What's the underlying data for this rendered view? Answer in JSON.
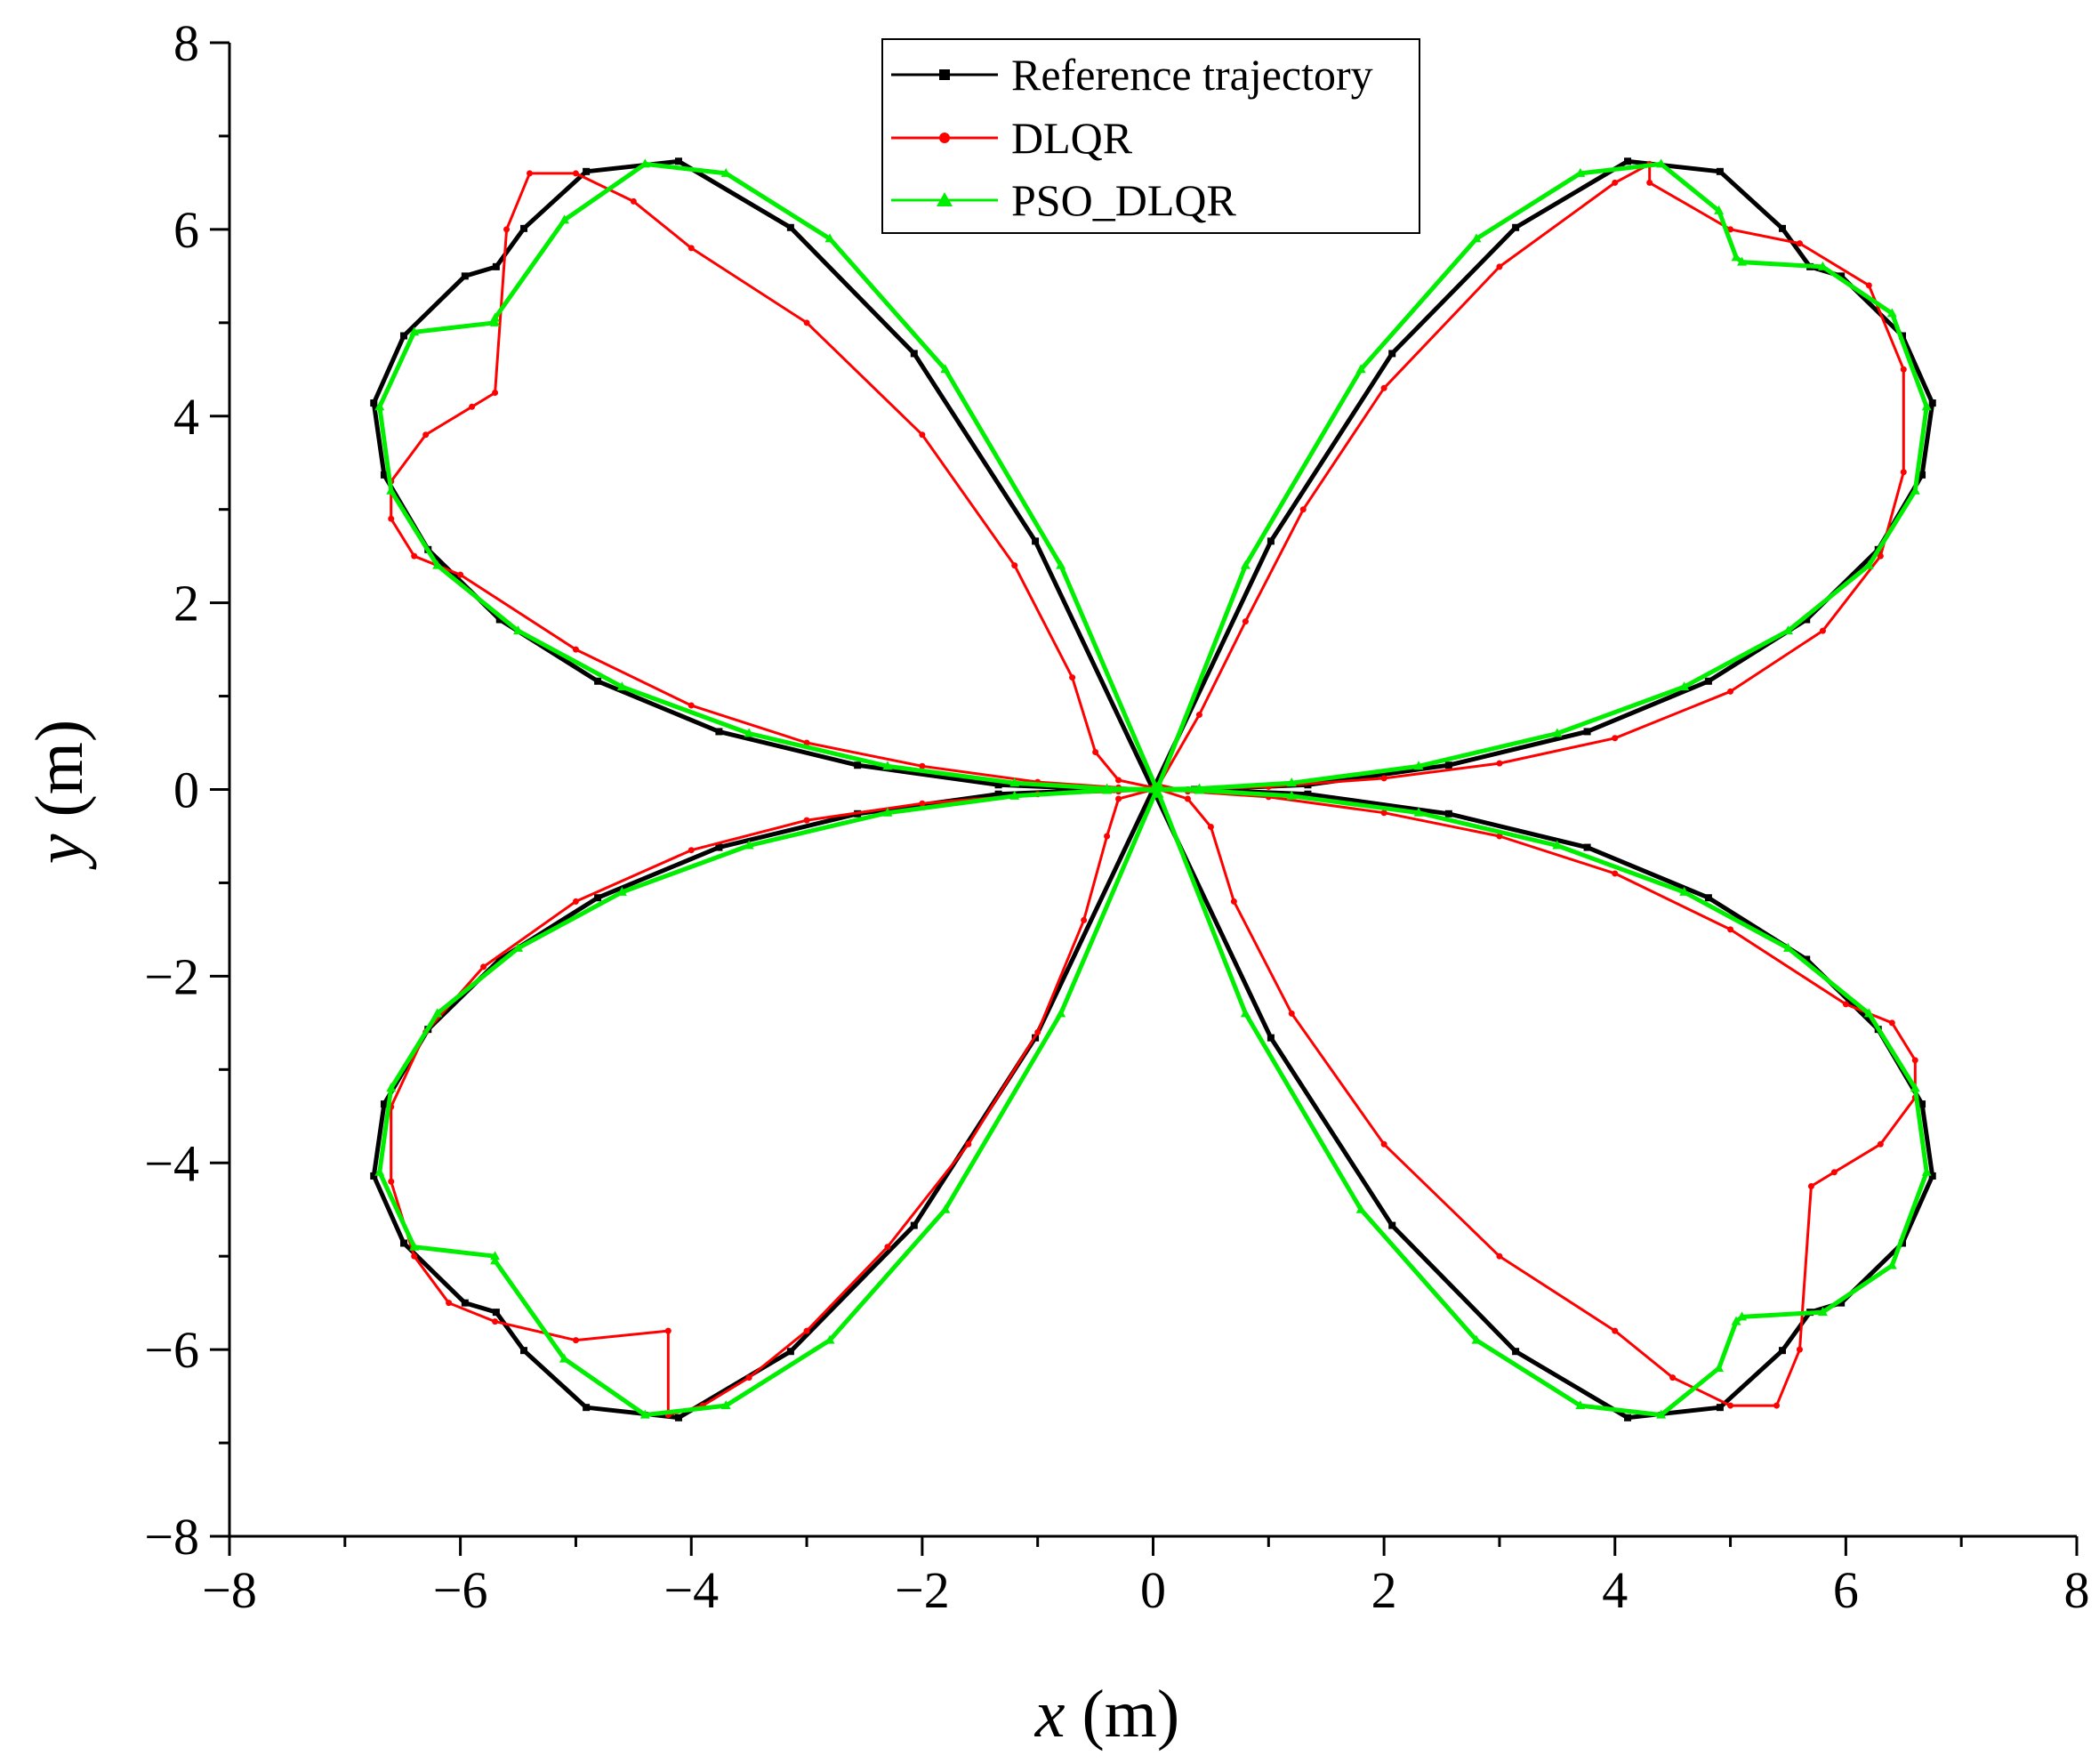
{
  "chart_data": {
    "type": "line",
    "title": "",
    "xlabel": {
      "var": "x",
      "unit": " (m)"
    },
    "ylabel": {
      "var": "y",
      "unit": " (m)"
    },
    "xlim": [
      -8,
      8
    ],
    "ylim": [
      -8,
      8
    ],
    "xticks": [
      -8,
      -6,
      -4,
      -2,
      0,
      2,
      4,
      6,
      8
    ],
    "yticks": [
      -8,
      -6,
      -4,
      -2,
      0,
      2,
      4,
      6,
      8
    ],
    "xtick_labels": [
      "−8",
      "−6",
      "−4",
      "−2",
      "0",
      "2",
      "4",
      "6",
      "8"
    ],
    "ytick_labels": [
      "−8",
      "−6",
      "−4",
      "−2",
      "0",
      "2",
      "4",
      "6",
      "8"
    ],
    "grid": false,
    "legend_position": "top-center",
    "series": [
      {
        "name": "Reference trajectory",
        "color": "#000000",
        "marker": "square",
        "x": [
          0.0,
          1.02,
          2.07,
          3.14,
          4.11,
          4.91,
          5.45,
          5.69,
          5.96,
          6.49,
          6.75,
          6.66,
          6.28,
          5.66,
          4.81,
          3.76,
          2.56,
          1.34,
          0.36,
          0.0,
          -0.36,
          -1.34,
          -2.56,
          -3.76,
          -4.81,
          -5.66,
          -6.28,
          -6.66,
          -6.75,
          -6.49,
          -5.96,
          -5.69,
          -5.45,
          -4.91,
          -4.11,
          -3.14,
          -2.07,
          -1.02,
          0.0,
          1.02,
          2.07,
          3.14,
          4.11,
          4.91,
          5.45,
          5.69,
          5.96,
          6.49,
          6.75,
          6.66,
          6.28,
          5.66,
          4.81,
          3.76,
          2.56,
          1.34,
          0.36,
          0.0,
          -0.36,
          -1.34,
          -2.56,
          -3.76,
          -4.81,
          -5.66,
          -6.28,
          -6.66,
          -6.75,
          -6.49,
          -5.96,
          -5.69,
          -5.45,
          -4.91,
          -4.11,
          -3.14,
          -2.07,
          -1.02,
          0.0
        ],
        "y": [
          0.0,
          2.66,
          4.67,
          6.02,
          6.73,
          6.62,
          6.01,
          5.6,
          5.5,
          4.86,
          4.14,
          3.37,
          2.57,
          1.82,
          1.16,
          0.62,
          0.26,
          0.05,
          0.0,
          0.0,
          0.0,
          0.05,
          0.26,
          0.62,
          1.16,
          1.82,
          2.57,
          3.37,
          4.14,
          4.86,
          5.5,
          5.6,
          6.01,
          6.62,
          6.73,
          6.02,
          4.67,
          2.66,
          0.0,
          -2.66,
          -4.67,
          -6.02,
          -6.73,
          -6.62,
          -6.01,
          -5.6,
          -5.5,
          -4.86,
          -4.14,
          -3.37,
          -2.57,
          -1.82,
          -1.16,
          -0.62,
          -0.26,
          -0.05,
          0.0,
          0.0,
          0.0,
          -0.05,
          -0.26,
          -0.62,
          -1.16,
          -1.82,
          -2.57,
          -3.37,
          -4.14,
          -4.86,
          -5.5,
          -5.6,
          -6.01,
          -6.62,
          -6.73,
          -6.02,
          -4.67,
          -2.66,
          0.0
        ]
      },
      {
        "name": "DLQR",
        "color": "#ff0000",
        "marker": "circle",
        "x": [
          0.05,
          0.4,
          0.8,
          1.3,
          2.0,
          3.0,
          4.0,
          4.3,
          4.3,
          5.0,
          5.6,
          6.2,
          6.5,
          6.5,
          6.3,
          5.8,
          5.0,
          4.0,
          3.0,
          2.0,
          1.0,
          0.3,
          0.0,
          -0.3,
          -0.5,
          -0.7,
          -1.2,
          -2.0,
          -3.0,
          -4.0,
          -4.5,
          -5.0,
          -5.4,
          -5.6,
          -5.7,
          -5.9,
          -6.3,
          -6.6,
          -6.6,
          -6.4,
          -6.0,
          -5.0,
          -4.0,
          -3.0,
          -2.0,
          -1.0,
          -0.3,
          0.0,
          -0.3,
          -0.4,
          -0.6,
          -1.0,
          -1.6,
          -2.3,
          -3.0,
          -3.5,
          -3.9,
          -4.2,
          -4.2,
          -5.0,
          -5.7,
          -6.1,
          -6.4,
          -6.6,
          -6.6,
          -6.3,
          -5.8,
          -5.0,
          -4.0,
          -3.0,
          -2.0,
          -1.0,
          -0.3,
          0.05,
          0.3,
          0.5,
          0.7,
          1.2,
          2.0,
          3.0,
          4.0,
          4.5,
          5.0,
          5.4,
          5.6,
          5.7,
          5.9,
          6.3,
          6.6,
          6.6,
          6.4,
          6.0,
          5.0,
          4.0,
          3.0,
          2.0,
          1.0,
          0.3,
          0.05
        ],
        "y": [
          0.05,
          0.8,
          1.8,
          3.0,
          4.3,
          5.6,
          6.5,
          6.7,
          6.5,
          6.0,
          5.85,
          5.4,
          4.5,
          3.4,
          2.5,
          1.7,
          1.05,
          0.55,
          0.28,
          0.12,
          0.03,
          0.0,
          0.02,
          0.1,
          0.4,
          1.2,
          2.4,
          3.8,
          5.0,
          5.8,
          6.3,
          6.6,
          6.6,
          6.0,
          4.25,
          4.1,
          3.8,
          3.3,
          2.9,
          2.5,
          2.3,
          1.5,
          0.9,
          0.5,
          0.25,
          0.08,
          0.02,
          0.0,
          -0.1,
          -0.5,
          -1.4,
          -2.6,
          -3.8,
          -4.9,
          -5.8,
          -6.3,
          -6.6,
          -6.7,
          -5.8,
          -5.9,
          -5.7,
          -5.5,
          -5.0,
          -4.2,
          -3.4,
          -2.6,
          -1.9,
          -1.2,
          -0.65,
          -0.33,
          -0.15,
          -0.05,
          -0.02,
          0.0,
          -0.1,
          -0.4,
          -1.2,
          -2.4,
          -3.8,
          -5.0,
          -5.8,
          -6.3,
          -6.6,
          -6.6,
          -6.0,
          -4.25,
          -4.1,
          -3.8,
          -3.3,
          -2.9,
          -2.5,
          -2.3,
          -1.5,
          -0.9,
          -0.5,
          -0.25,
          -0.08,
          -0.02,
          0.05
        ]
      },
      {
        "name": "PSO_DLQR",
        "color": "#00ee00",
        "marker": "triangle",
        "x": [
          0.05,
          0.8,
          1.8,
          2.8,
          3.7,
          4.4,
          4.9,
          5.05,
          5.1,
          5.8,
          6.4,
          6.7,
          6.6,
          6.2,
          5.5,
          4.6,
          3.5,
          2.3,
          1.2,
          0.4,
          0.0,
          -0.4,
          -1.2,
          -2.3,
          -3.5,
          -4.6,
          -5.5,
          -6.2,
          -6.6,
          -6.7,
          -6.4,
          -5.7,
          -5.7,
          -5.1,
          -4.4,
          -3.7,
          -2.8,
          -1.8,
          -0.8,
          0.05,
          0.8,
          1.8,
          2.8,
          3.7,
          4.4,
          4.9,
          5.05,
          5.1,
          5.8,
          6.4,
          6.7,
          6.6,
          6.2,
          5.5,
          4.6,
          3.5,
          2.3,
          1.2,
          0.4,
          0.0,
          -0.4,
          -1.2,
          -2.3,
          -3.5,
          -4.6,
          -5.5,
          -6.2,
          -6.6,
          -6.7,
          -6.4,
          -5.7,
          -5.7,
          -5.1,
          -4.4,
          -3.7,
          -2.8,
          -1.8,
          -0.8,
          0.05
        ],
        "y": [
          0.05,
          2.4,
          4.5,
          5.9,
          6.6,
          6.7,
          6.2,
          5.7,
          5.65,
          5.6,
          5.1,
          4.1,
          3.2,
          2.4,
          1.7,
          1.1,
          0.6,
          0.25,
          0.07,
          0.01,
          0.0,
          0.01,
          0.07,
          0.25,
          0.6,
          1.1,
          1.7,
          2.4,
          3.2,
          4.1,
          4.9,
          5.0,
          5.05,
          6.1,
          6.7,
          6.6,
          5.9,
          4.5,
          2.4,
          -0.05,
          -2.4,
          -4.5,
          -5.9,
          -6.6,
          -6.7,
          -6.2,
          -5.7,
          -5.65,
          -5.6,
          -5.1,
          -4.1,
          -3.2,
          -2.4,
          -1.7,
          -1.1,
          -0.6,
          -0.25,
          -0.07,
          -0.01,
          0.0,
          -0.01,
          -0.07,
          -0.25,
          -0.6,
          -1.1,
          -1.7,
          -2.4,
          -3.2,
          -4.1,
          -4.9,
          -5.0,
          -5.05,
          -6.1,
          -6.7,
          -6.6,
          -5.9,
          -4.5,
          -2.4,
          0.05
        ]
      }
    ]
  }
}
